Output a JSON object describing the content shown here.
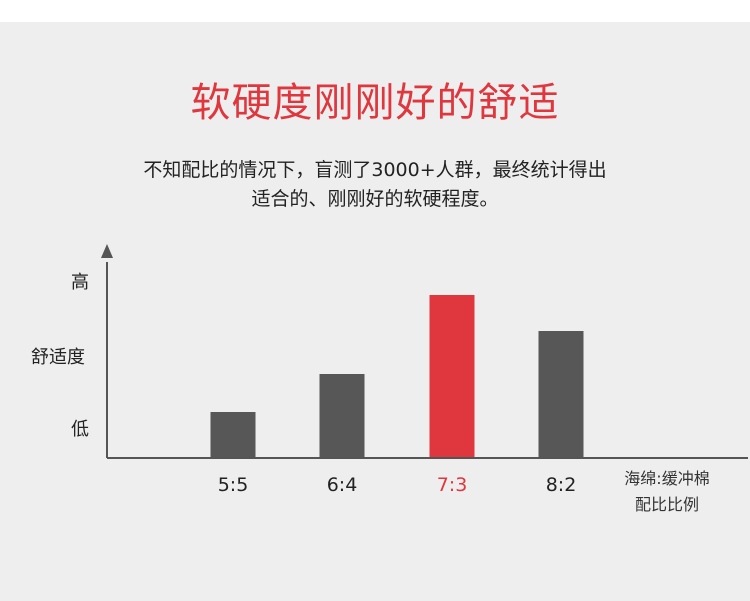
{
  "headline": {
    "accent": "软硬度刚刚好",
    "rest": "的舒适"
  },
  "description": {
    "line1": "不知配比的情况下，盲测了3000+人群，最终统计得出",
    "line2": "适合的、刚刚好的软硬程度。"
  },
  "colors": {
    "accent": "#e0363e",
    "bar": "#575757",
    "axis": "#555555",
    "background": "#efeeee"
  },
  "chart_data": {
    "type": "bar",
    "categories": [
      "5:5",
      "6:4",
      "7:3",
      "8:2"
    ],
    "values": [
      28,
      51,
      100,
      78
    ],
    "highlight_index": 2,
    "ylabel": "舒适度",
    "ytick_high": "高",
    "ytick_low": "低",
    "xlabel_line1": "海绵:缓冲棉",
    "xlabel_line2": "配比比例",
    "ylim": [
      0,
      100
    ]
  }
}
